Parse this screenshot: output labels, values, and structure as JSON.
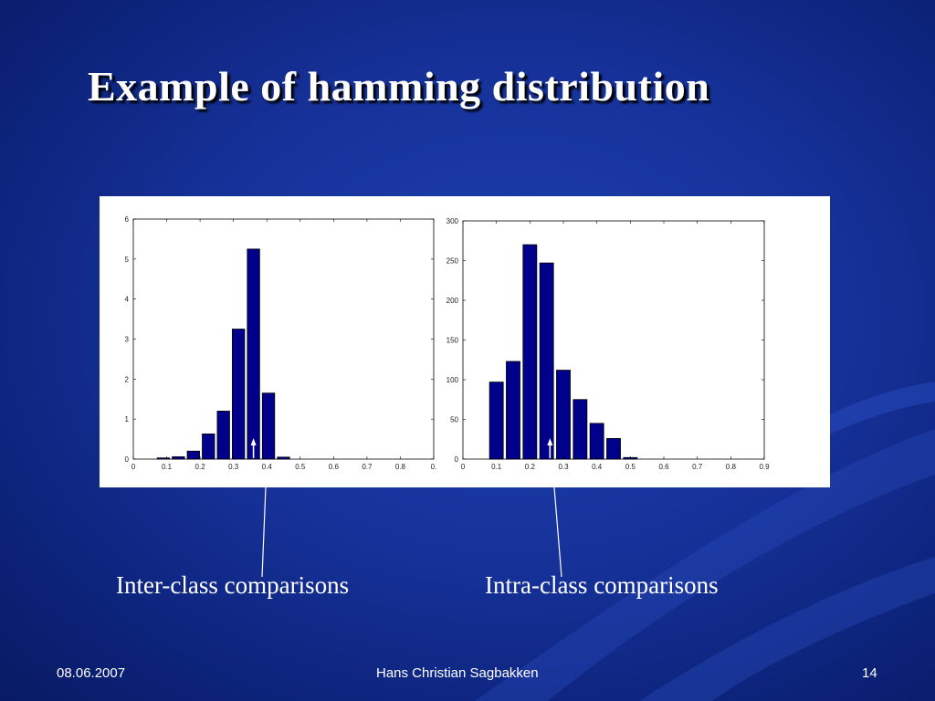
{
  "slide": {
    "title": "Example of hamming distribution",
    "caption_left": "Inter-class comparisons",
    "caption_right": "Intra-class comparisons",
    "footer_date": "08.06.2007",
    "footer_author": "Hans Christian Sagbakken",
    "footer_page": "14"
  },
  "colors": {
    "background": "#16329a",
    "bar": "#00008b",
    "text": "#ffffff"
  },
  "chart_data": [
    {
      "type": "bar",
      "categories": [
        0.1,
        0.15,
        0.2,
        0.25,
        0.3,
        0.35,
        0.4,
        0.45,
        0.5
      ],
      "values": [
        0.03,
        0.06,
        0.2,
        0.63,
        1.2,
        3.25,
        5.25,
        1.65,
        0.05
      ],
      "xlim": [
        0,
        1
      ],
      "ylim": [
        0,
        6
      ],
      "xticks": [
        "0",
        "0.1",
        "0.2",
        "0.3",
        "0.4",
        "0.5",
        "0.6",
        "0.7",
        "0.8",
        "0."
      ],
      "yticks": [
        "0",
        "1",
        "2",
        "3",
        "4",
        "5",
        "6"
      ],
      "annotation_arrow_x": 0.4
    },
    {
      "type": "bar",
      "categories": [
        0.1,
        0.15,
        0.2,
        0.25,
        0.3,
        0.35,
        0.4,
        0.45,
        0.5
      ],
      "values": [
        97,
        123,
        270,
        247,
        112,
        75,
        45,
        26,
        2
      ],
      "xlim": [
        0,
        0.9
      ],
      "ylim": [
        0,
        300
      ],
      "xticks": [
        "0",
        "0.1",
        "0.2",
        "0.3",
        "0.4",
        "0.5",
        "0.6",
        "0.7",
        "0.8",
        "0.9"
      ],
      "yticks": [
        "0",
        "50",
        "100",
        "150",
        "200",
        "250",
        "300"
      ],
      "annotation_arrow_x": 0.26
    }
  ]
}
